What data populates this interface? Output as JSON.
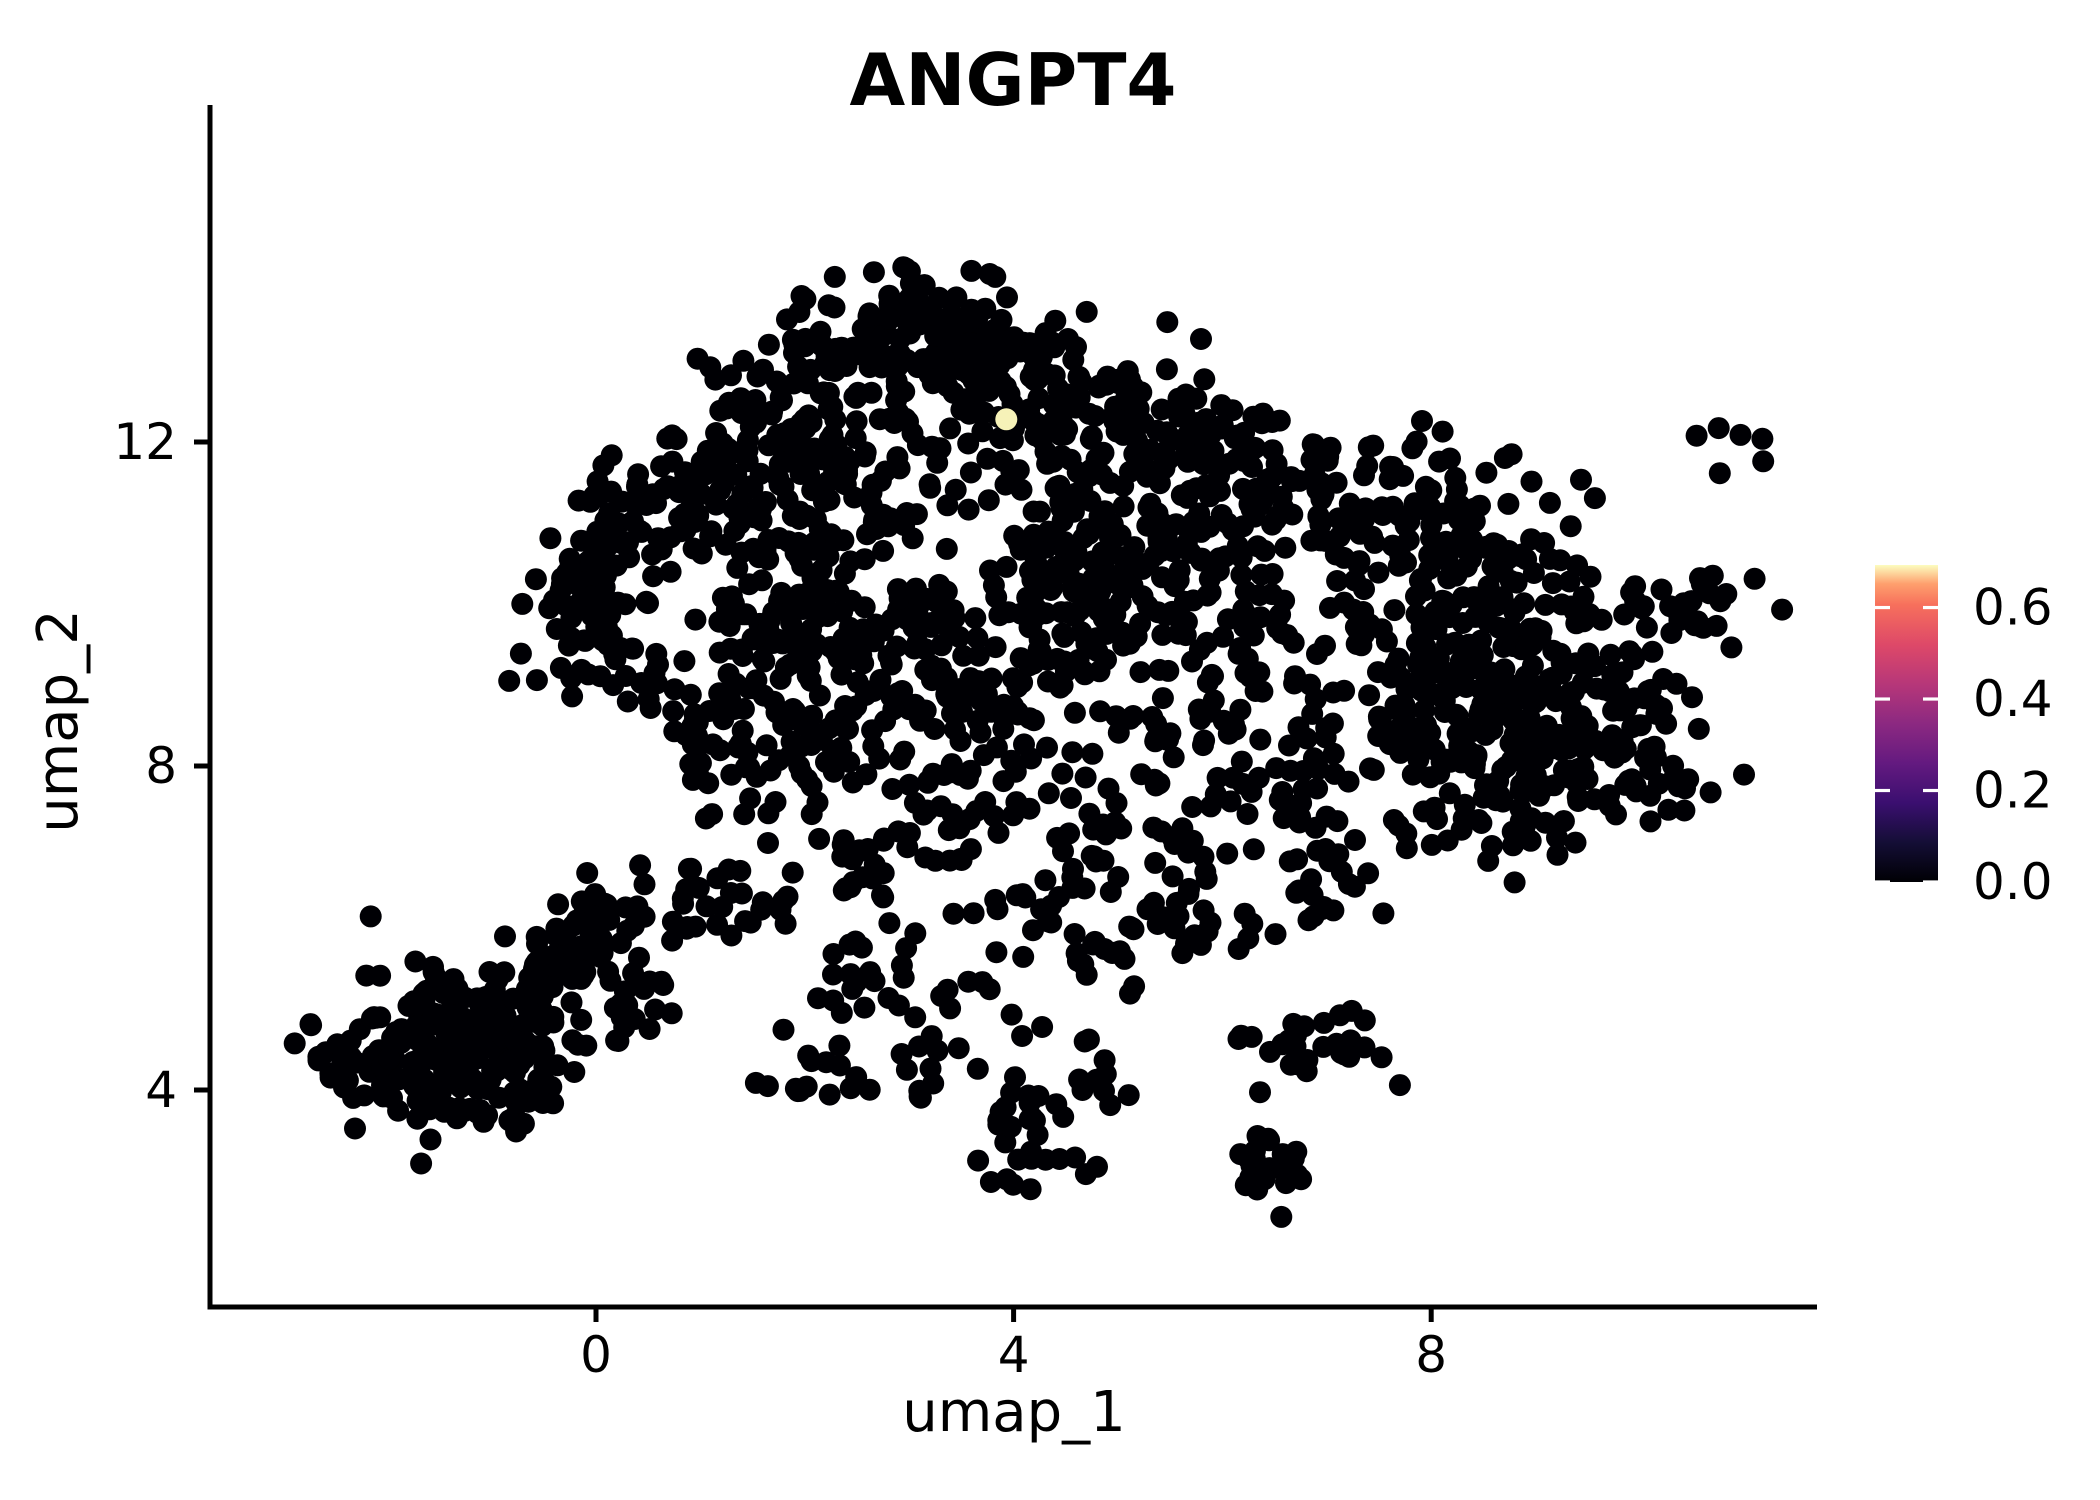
{
  "figure": {
    "background": "#ffffff"
  },
  "chart_data": {
    "type": "scatter",
    "title": "ANGPT4",
    "xlabel": "umap_1",
    "ylabel": "umap_2",
    "xlim": [
      -3.7,
      11.7
    ],
    "ylim": [
      1.3,
      16.2
    ],
    "grid": false,
    "x_ticks": [
      {
        "value": 0,
        "label": "0"
      },
      {
        "value": 4,
        "label": "4"
      },
      {
        "value": 8,
        "label": "8"
      }
    ],
    "y_ticks": [
      {
        "value": 4,
        "label": "4"
      },
      {
        "value": 8,
        "label": "8"
      },
      {
        "value": 12,
        "label": "12"
      }
    ],
    "axis_color": "#000000",
    "text_color": "#000000",
    "point_color": "#000004",
    "point_radius_px": 11,
    "n_points_approx": 2550,
    "highlight_point": {
      "x": 3.93,
      "y": 12.28,
      "value": 0.69,
      "color": "#f6f2b8"
    },
    "clusters_note": "approximated density blobs [center_x, center_y, sd_x, sd_y, n_points] in umap coordinates",
    "clusters": [
      [
        -2.35,
        4.55,
        0.22,
        0.28,
        28
      ],
      [
        -1.85,
        4.3,
        0.3,
        0.35,
        45
      ],
      [
        -1.25,
        4.1,
        0.32,
        0.38,
        48
      ],
      [
        -1.45,
        5.0,
        0.35,
        0.38,
        50
      ],
      [
        -0.75,
        4.75,
        0.32,
        0.42,
        52
      ],
      [
        -0.35,
        5.55,
        0.32,
        0.38,
        42
      ],
      [
        0.05,
        6.05,
        0.3,
        0.32,
        30
      ],
      [
        -0.85,
        3.75,
        0.28,
        0.25,
        20
      ],
      [
        0.25,
        5.0,
        0.28,
        0.3,
        22
      ],
      [
        0.95,
        6.25,
        0.22,
        0.28,
        14
      ],
      [
        1.5,
        6.05,
        0.18,
        0.22,
        9
      ],
      [
        2.6,
        4.0,
        0.55,
        0.1,
        13
      ],
      [
        3.25,
        4.55,
        0.28,
        0.28,
        11
      ],
      [
        4.1,
        3.35,
        0.3,
        0.38,
        28
      ],
      [
        4.6,
        4.15,
        0.28,
        0.28,
        13
      ],
      [
        3.5,
        5.35,
        0.4,
        0.35,
        16
      ],
      [
        2.3,
        5.3,
        0.28,
        0.28,
        10
      ],
      [
        4.9,
        5.6,
        0.32,
        0.3,
        13
      ],
      [
        5.7,
        5.95,
        0.3,
        0.18,
        9
      ],
      [
        2.0,
        4.4,
        0.2,
        0.2,
        6
      ],
      [
        3.0,
        6.2,
        0.9,
        0.45,
        14
      ],
      [
        6.2,
        6.0,
        0.5,
        0.3,
        8
      ],
      [
        6.5,
        3.15,
        0.18,
        0.32,
        25
      ],
      [
        7.0,
        4.5,
        0.28,
        0.22,
        26
      ],
      [
        6.45,
        4.6,
        0.12,
        0.12,
        5
      ],
      [
        -0.05,
        10.4,
        0.28,
        0.55,
        55
      ],
      [
        0.0,
        9.65,
        0.32,
        0.38,
        38
      ],
      [
        0.5,
        11.15,
        0.38,
        0.32,
        32
      ],
      [
        0.45,
        8.95,
        0.28,
        0.28,
        18
      ],
      [
        1.05,
        8.55,
        0.28,
        0.32,
        18
      ],
      [
        1.35,
        11.85,
        0.42,
        0.48,
        50
      ],
      [
        2.05,
        12.6,
        0.42,
        0.48,
        65
      ],
      [
        2.8,
        13.35,
        0.42,
        0.42,
        85
      ],
      [
        3.5,
        13.05,
        0.38,
        0.48,
        65
      ],
      [
        4.2,
        12.65,
        0.42,
        0.48,
        60
      ],
      [
        5.0,
        12.3,
        0.42,
        0.42,
        50
      ],
      [
        5.8,
        12.05,
        0.38,
        0.38,
        38
      ],
      [
        6.5,
        11.7,
        0.32,
        0.38,
        24
      ],
      [
        1.65,
        10.7,
        0.45,
        0.55,
        55
      ],
      [
        2.4,
        11.3,
        0.45,
        0.45,
        50
      ],
      [
        1.85,
        9.5,
        0.45,
        0.5,
        50
      ],
      [
        2.7,
        9.95,
        0.45,
        0.45,
        45
      ],
      [
        1.6,
        8.2,
        0.42,
        0.5,
        45
      ],
      [
        2.5,
        8.5,
        0.42,
        0.45,
        40
      ],
      [
        3.3,
        9.2,
        0.42,
        0.5,
        40
      ],
      [
        3.3,
        7.4,
        0.38,
        0.45,
        30
      ],
      [
        2.65,
        6.9,
        0.35,
        0.35,
        25
      ],
      [
        4.0,
        8.3,
        0.38,
        0.45,
        26
      ],
      [
        4.8,
        10.2,
        0.42,
        0.5,
        85
      ],
      [
        4.3,
        11.3,
        0.42,
        0.45,
        55
      ],
      [
        5.3,
        11.0,
        0.38,
        0.42,
        42
      ],
      [
        4.25,
        9.3,
        0.35,
        0.38,
        26
      ],
      [
        5.5,
        9.0,
        0.4,
        0.55,
        30
      ],
      [
        4.9,
        7.5,
        0.38,
        0.45,
        26
      ],
      [
        5.85,
        7.6,
        0.38,
        0.45,
        26
      ],
      [
        4.45,
        6.4,
        0.32,
        0.35,
        18
      ],
      [
        5.3,
        6.3,
        0.25,
        0.25,
        10
      ],
      [
        6.3,
        10.9,
        0.38,
        0.45,
        32
      ],
      [
        6.3,
        9.8,
        0.38,
        0.45,
        28
      ],
      [
        6.6,
        8.6,
        0.38,
        0.45,
        28
      ],
      [
        6.9,
        7.2,
        0.32,
        0.4,
        22
      ],
      [
        7.2,
        6.35,
        0.25,
        0.25,
        12
      ],
      [
        7.0,
        11.4,
        0.32,
        0.35,
        22
      ],
      [
        7.6,
        10.8,
        0.32,
        0.42,
        28
      ],
      [
        7.55,
        9.6,
        0.32,
        0.45,
        28
      ],
      [
        7.6,
        8.3,
        0.32,
        0.42,
        24
      ],
      [
        8.1,
        11.9,
        0.35,
        0.25,
        10
      ],
      [
        9.0,
        11.5,
        0.3,
        0.25,
        8
      ],
      [
        8.3,
        9.8,
        0.42,
        0.5,
        65
      ],
      [
        8.4,
        8.5,
        0.42,
        0.5,
        60
      ],
      [
        9.2,
        9.4,
        0.42,
        0.45,
        60
      ],
      [
        9.2,
        8.3,
        0.38,
        0.42,
        50
      ],
      [
        8.6,
        7.4,
        0.38,
        0.35,
        35
      ],
      [
        9.6,
        7.9,
        0.32,
        0.35,
        30
      ],
      [
        10.0,
        8.75,
        0.32,
        0.38,
        28
      ],
      [
        8.0,
        11.0,
        0.32,
        0.32,
        22
      ],
      [
        8.8,
        10.55,
        0.32,
        0.32,
        26
      ],
      [
        10.45,
        10.0,
        0.32,
        0.28,
        28
      ],
      [
        10.3,
        7.85,
        0.25,
        0.22,
        12
      ],
      [
        10.75,
        12.05,
        0.2,
        0.15,
        6
      ]
    ],
    "colorbar": {
      "position": "right",
      "colormap": "magma",
      "min": 0.0,
      "max": 0.693,
      "ticks": [
        {
          "value": 0.6,
          "label": "0.6"
        },
        {
          "value": 0.4,
          "label": "0.4"
        },
        {
          "value": 0.2,
          "label": "0.2"
        },
        {
          "value": 0.0,
          "label": "0.0"
        }
      ],
      "tick_mark_color": "#ffffff",
      "gradient_stops": [
        {
          "t": 0.0,
          "color": "#000004"
        },
        {
          "t": 0.125,
          "color": "#140e36"
        },
        {
          "t": 0.25,
          "color": "#3b0f70"
        },
        {
          "t": 0.375,
          "color": "#641a80"
        },
        {
          "t": 0.5,
          "color": "#8c2981"
        },
        {
          "t": 0.625,
          "color": "#b73779"
        },
        {
          "t": 0.75,
          "color": "#de4968"
        },
        {
          "t": 0.875,
          "color": "#f7705c"
        },
        {
          "t": 0.94,
          "color": "#fe9f6d"
        },
        {
          "t": 1.0,
          "color": "#fcfdbf"
        }
      ]
    }
  }
}
